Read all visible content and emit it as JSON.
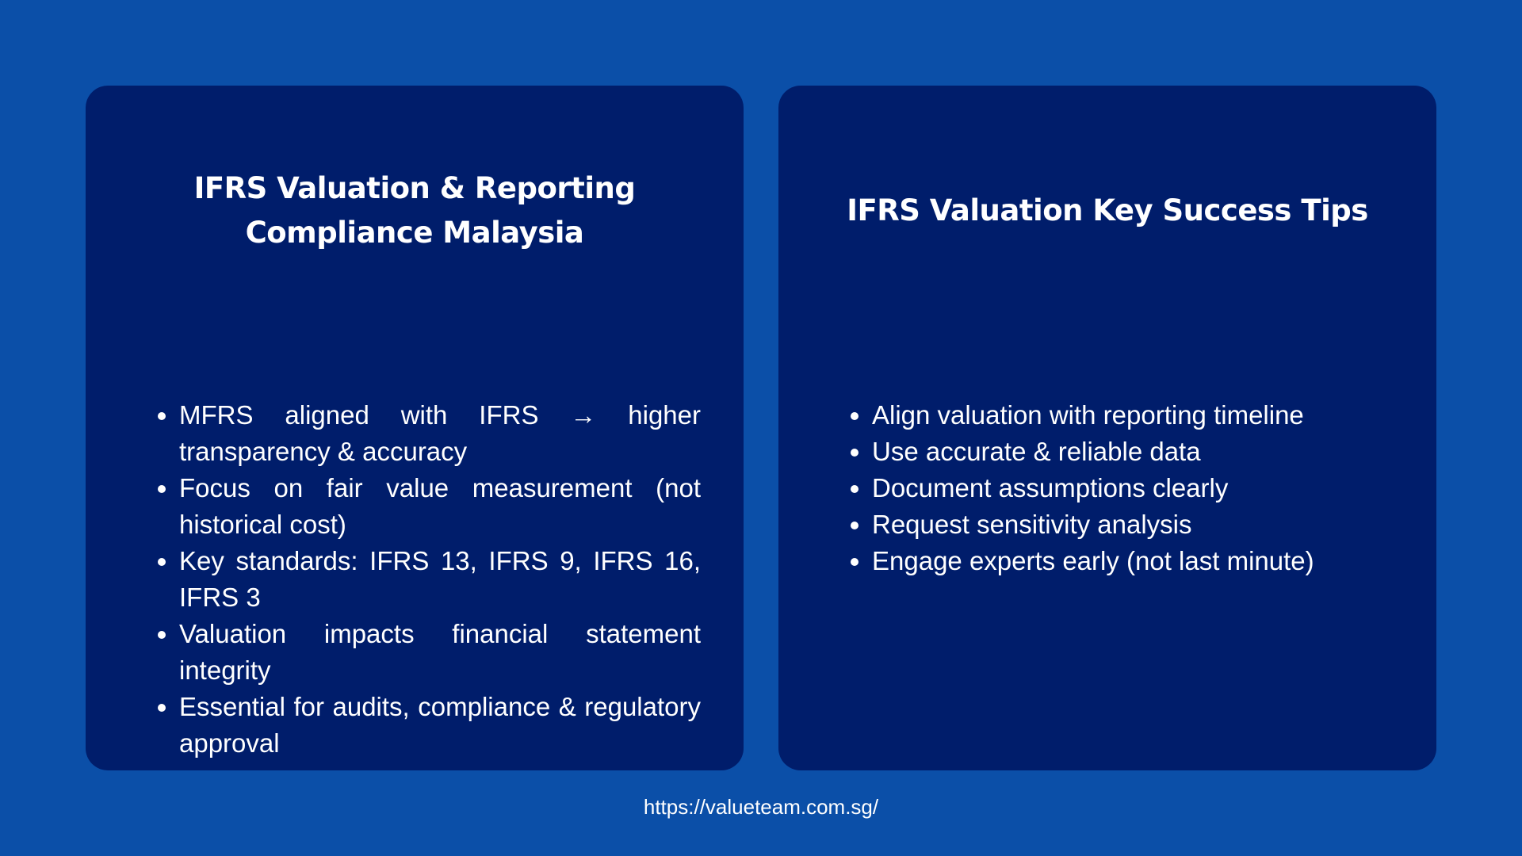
{
  "left_card": {
    "title": "IFRS Valuation & Reporting Compliance Malaysia",
    "bullets": [
      "MFRS aligned with IFRS → higher transparency & accuracy",
      "Focus on fair value measurement (not historical cost)",
      "Key standards: IFRS 13, IFRS 9, IFRS 16, IFRS 3",
      "Valuation impacts financial statement integrity",
      "Essential for audits, compliance & regulatory approval"
    ]
  },
  "right_card": {
    "title": "IFRS Valuation Key Success Tips",
    "bullets": [
      "Align valuation with reporting timeline",
      "Use accurate & reliable data",
      "Document assumptions clearly",
      "Request sensitivity analysis",
      "Engage experts early (not last minute)"
    ]
  },
  "footer": {
    "url": "https://valueteam.com.sg/"
  },
  "colors": {
    "background": "#0b4fa8",
    "card": "#001d6b",
    "text": "#ffffff"
  }
}
